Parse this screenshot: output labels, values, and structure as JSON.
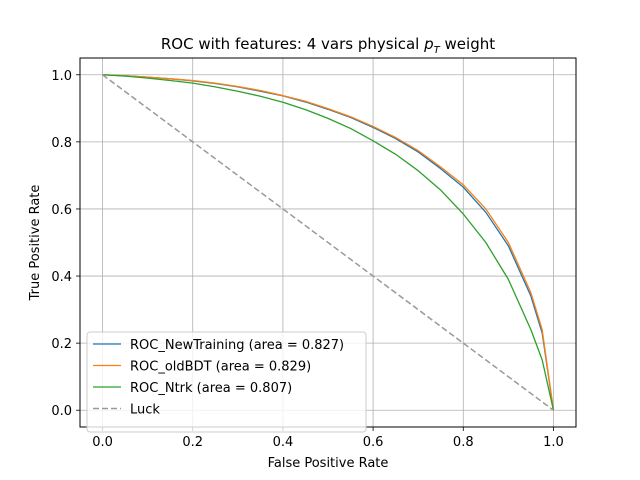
{
  "chart_data": {
    "type": "line",
    "title": "ROC with features: 4 vars physical ",
    "title_math": {
      "base": "p",
      "sub": "T"
    },
    "title_suffix": " weight",
    "xlabel": "False Positive Rate",
    "ylabel": "True Positive Rate",
    "xlim": [
      -0.05,
      1.05
    ],
    "ylim": [
      -0.05,
      1.05
    ],
    "xticks": [
      0.0,
      0.2,
      0.4,
      0.6,
      0.8,
      1.0
    ],
    "yticks": [
      0.0,
      0.2,
      0.4,
      0.6,
      0.8,
      1.0
    ],
    "xtick_labels": [
      "0.0",
      "0.2",
      "0.4",
      "0.6",
      "0.8",
      "1.0"
    ],
    "ytick_labels": [
      "0.0",
      "0.2",
      "0.4",
      "0.6",
      "0.8",
      "1.0"
    ],
    "grid": true,
    "legend_position": "lower-left",
    "series": [
      {
        "name": "ROC_NewTraining (area = 0.827)",
        "color": "#1f77b4",
        "dashed": false,
        "x": [
          0.0,
          0.05,
          0.1,
          0.15,
          0.2,
          0.25,
          0.3,
          0.35,
          0.4,
          0.45,
          0.5,
          0.55,
          0.6,
          0.65,
          0.7,
          0.75,
          0.8,
          0.85,
          0.9,
          0.95,
          0.975,
          1.0
        ],
        "y": [
          1.0,
          0.997,
          0.993,
          0.988,
          0.982,
          0.974,
          0.964,
          0.951,
          0.937,
          0.919,
          0.897,
          0.873,
          0.843,
          0.81,
          0.77,
          0.72,
          0.665,
          0.59,
          0.49,
          0.34,
          0.23,
          0.0
        ]
      },
      {
        "name": "ROC_oldBDT (area = 0.829)",
        "color": "#ff7f0e",
        "dashed": false,
        "x": [
          0.0,
          0.05,
          0.1,
          0.15,
          0.2,
          0.25,
          0.3,
          0.35,
          0.4,
          0.45,
          0.5,
          0.55,
          0.6,
          0.65,
          0.7,
          0.75,
          0.8,
          0.85,
          0.9,
          0.95,
          0.975,
          1.0
        ],
        "y": [
          1.0,
          0.997,
          0.993,
          0.988,
          0.983,
          0.975,
          0.965,
          0.953,
          0.938,
          0.921,
          0.899,
          0.875,
          0.846,
          0.813,
          0.774,
          0.725,
          0.672,
          0.6,
          0.5,
          0.35,
          0.24,
          0.0
        ]
      },
      {
        "name": "ROC_Ntrk (area = 0.807)",
        "color": "#2ca02c",
        "dashed": false,
        "x": [
          0.0,
          0.05,
          0.1,
          0.15,
          0.2,
          0.25,
          0.3,
          0.35,
          0.4,
          0.45,
          0.5,
          0.55,
          0.6,
          0.65,
          0.7,
          0.75,
          0.8,
          0.85,
          0.9,
          0.95,
          0.975,
          1.0
        ],
        "y": [
          1.0,
          0.996,
          0.99,
          0.983,
          0.975,
          0.964,
          0.951,
          0.936,
          0.918,
          0.896,
          0.87,
          0.84,
          0.803,
          0.763,
          0.714,
          0.656,
          0.585,
          0.5,
          0.39,
          0.24,
          0.15,
          0.0
        ]
      },
      {
        "name": "Luck",
        "color": "#999999",
        "dashed": true,
        "x": [
          0.0,
          1.0
        ],
        "y": [
          1.0,
          0.0
        ]
      }
    ]
  }
}
